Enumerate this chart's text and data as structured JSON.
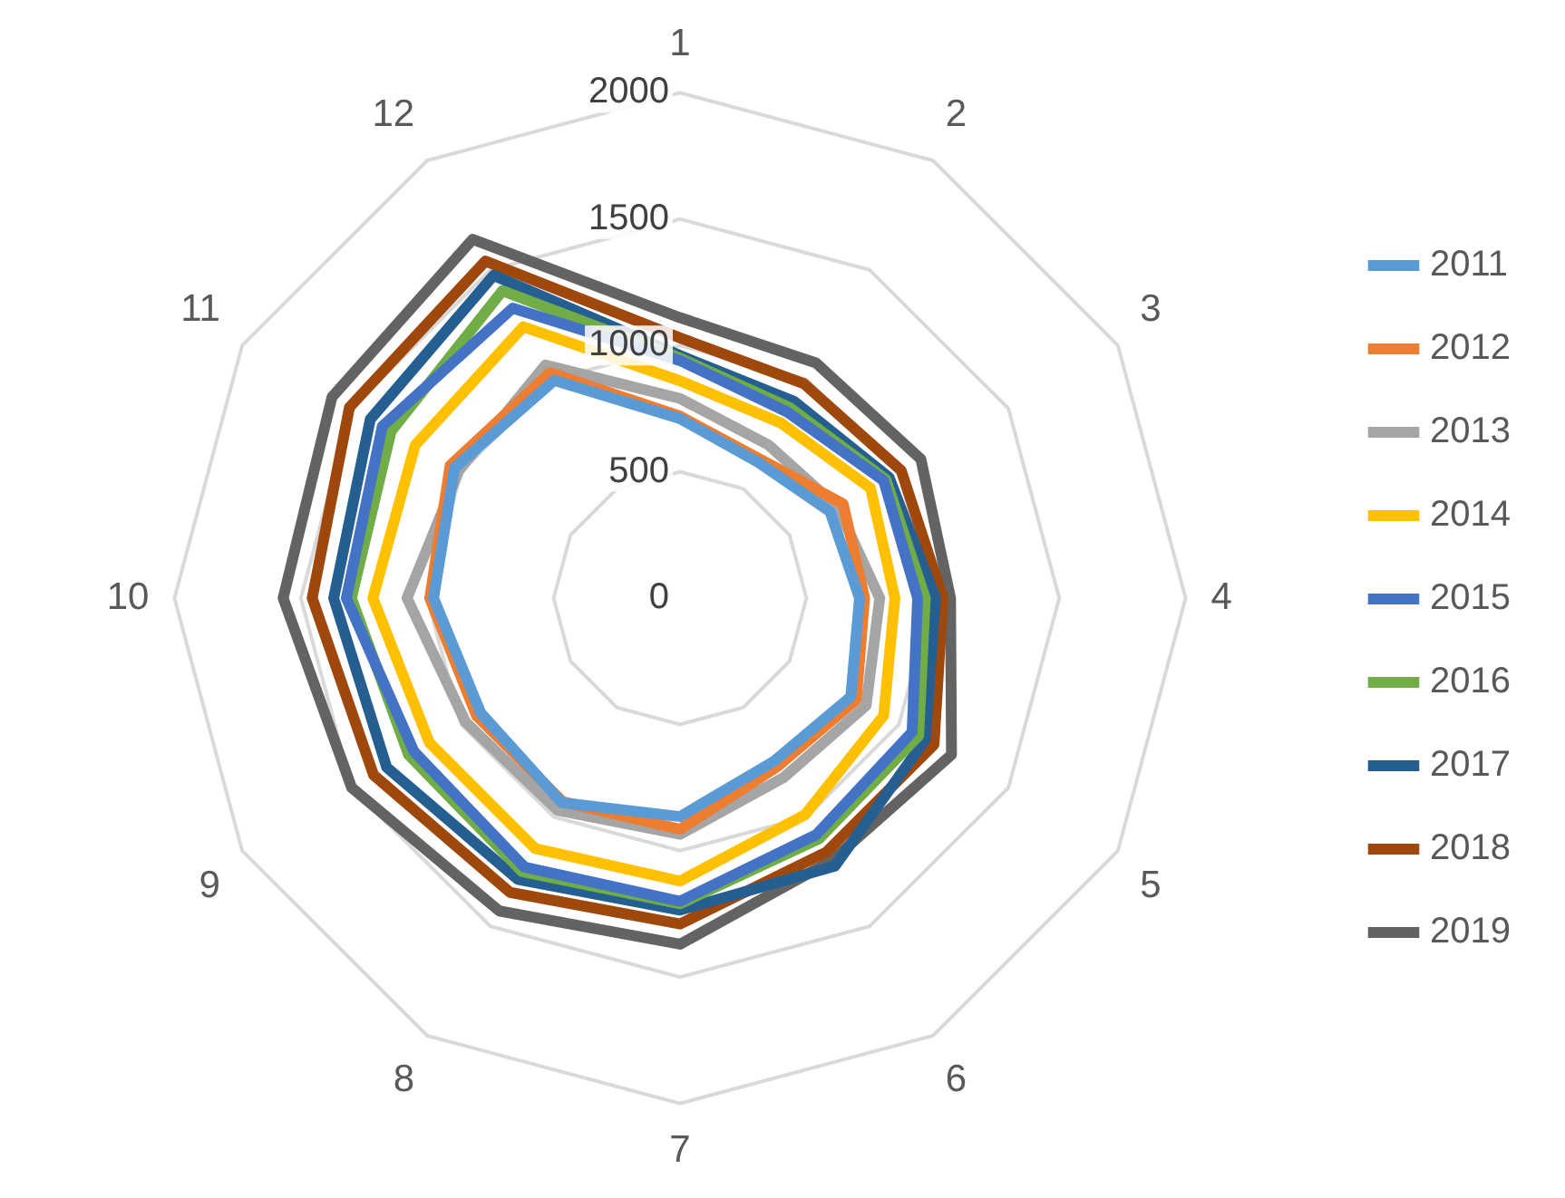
{
  "chart_data": {
    "type": "radar",
    "categories": [
      "1",
      "2",
      "3",
      "4",
      "5",
      "6",
      "7",
      "8",
      "9",
      "10",
      "11",
      "12"
    ],
    "ylim": [
      0,
      2000
    ],
    "yticks": [
      0,
      500,
      1000,
      1500,
      2000
    ],
    "grid": true,
    "legend": "right",
    "marker": "none",
    "line_style": "solid",
    "series": [
      {
        "name": "2011",
        "color": "#5b9bd5",
        "values": [
          710,
          620,
          685,
          710,
          780,
          745,
          865,
          935,
          910,
          975,
          1030,
          995
        ]
      },
      {
        "name": "2012",
        "color": "#ed7d31",
        "values": [
          720,
          635,
          745,
          730,
          805,
          770,
          915,
          930,
          930,
          990,
          1050,
          1030
        ]
      },
      {
        "name": "2013",
        "color": "#a5a5a5",
        "values": [
          790,
          700,
          720,
          790,
          850,
          820,
          935,
          970,
          980,
          1080,
          1010,
          1065
        ]
      },
      {
        "name": "2014",
        "color": "#ffc000",
        "values": [
          860,
          800,
          870,
          850,
          930,
          990,
          1120,
          1145,
          1145,
          1215,
          1210,
          1240
        ]
      },
      {
        "name": "2015",
        "color": "#4472c4",
        "values": [
          940,
          850,
          930,
          940,
          1060,
          1080,
          1200,
          1230,
          1215,
          1320,
          1360,
          1325
        ]
      },
      {
        "name": "2016",
        "color": "#70ad47",
        "values": [
          950,
          870,
          940,
          970,
          1090,
          1100,
          1210,
          1250,
          1240,
          1300,
          1320,
          1405
        ]
      },
      {
        "name": "2017",
        "color": "#255e91",
        "values": [
          960,
          900,
          955,
          1010,
          1120,
          1225,
          1235,
          1285,
          1340,
          1370,
          1415,
          1475
        ]
      },
      {
        "name": "2018",
        "color": "#9e480e",
        "values": [
          1030,
          980,
          1010,
          1040,
          1160,
          1160,
          1290,
          1345,
          1400,
          1455,
          1510,
          1540
        ]
      },
      {
        "name": "2019",
        "color": "#636363",
        "values": [
          1110,
          1075,
          1100,
          1070,
          1240,
          1200,
          1370,
          1430,
          1500,
          1570,
          1590,
          1640
        ]
      }
    ]
  }
}
